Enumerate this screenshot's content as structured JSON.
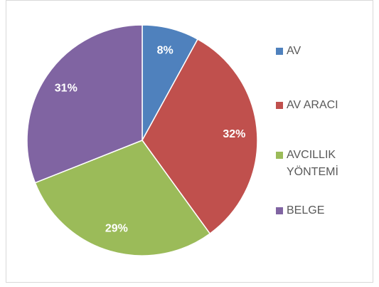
{
  "chart_data": {
    "type": "pie",
    "categories": [
      "AV",
      "AV ARACI",
      "AVCILLIK YÖNTEMİ",
      "BELGE"
    ],
    "values": [
      8,
      32,
      29,
      31
    ],
    "value_labels": [
      "8%",
      "32%",
      "29%",
      "31%"
    ],
    "colors": [
      "#4f81bd",
      "#c0504d",
      "#9bbb59",
      "#8064a2"
    ],
    "legend": "right"
  }
}
